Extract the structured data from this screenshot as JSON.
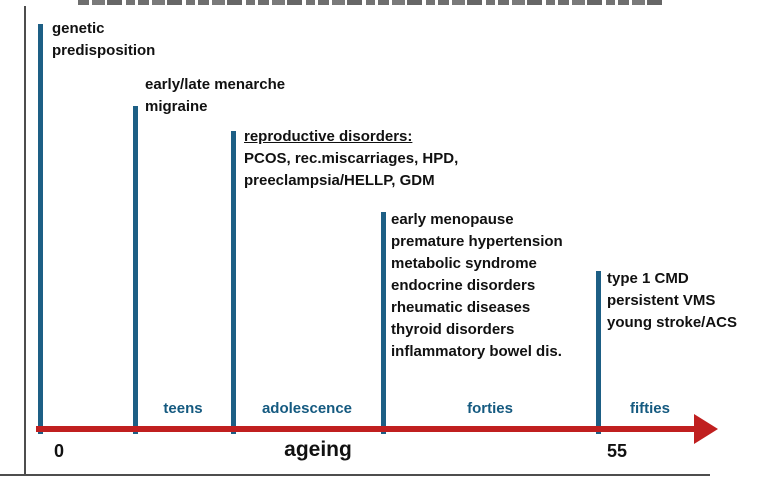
{
  "colors": {
    "marker_bar": "#1d5f85",
    "stage_label": "#155a80",
    "axis_arrow": "#c01f1f",
    "frame": "#4d4d4d",
    "text": "#111111"
  },
  "timeline": {
    "axis_label": "ageing",
    "start_tick": "0",
    "end_tick": "55",
    "stages": [
      {
        "label": "teens"
      },
      {
        "label": "adolescence"
      },
      {
        "label": "forties"
      },
      {
        "label": "fifties"
      }
    ],
    "milestones": [
      {
        "id": "birth",
        "lines": [
          "genetic",
          "predisposition"
        ]
      },
      {
        "id": "teens",
        "lines": [
          "early/late menarche",
          "migraine"
        ]
      },
      {
        "id": "adolescence",
        "heading": "reproductive disorders:",
        "lines": [
          "PCOS, rec.miscarriages, HPD,",
          "preeclampsia/HELLP, GDM"
        ]
      },
      {
        "id": "forties",
        "lines": [
          "early menopause",
          "premature hypertension",
          "metabolic syndrome",
          "endocrine disorders",
          "rheumatic diseases",
          "thyroid disorders",
          "inflammatory bowel dis."
        ]
      },
      {
        "id": "fifties",
        "lines": [
          "type 1 CMD",
          "persistent VMS",
          "young stroke/ACS"
        ]
      }
    ]
  }
}
